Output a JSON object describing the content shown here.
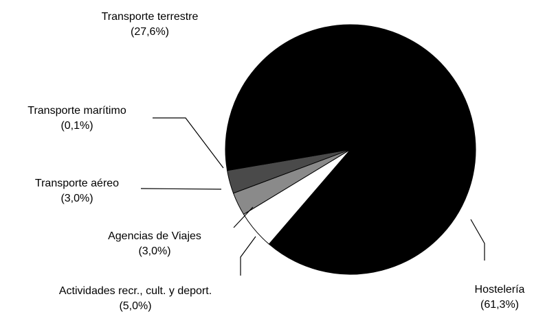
{
  "chart_data": {
    "type": "pie",
    "categories": [
      "Hostelería",
      "Actividades recr., cult. y deport.",
      "Agencias de Viajes",
      "Transporte aéreo",
      "Transporte marítimo",
      "Transporte terrestre"
    ],
    "values": [
      61.3,
      5.0,
      3.0,
      3.0,
      0.1,
      27.6
    ],
    "value_labels": [
      "(61,3%)",
      "(5,0%)",
      "(3,0%)",
      "(3,0%)",
      "(0,1%)",
      "(27,6%)"
    ],
    "colors": [
      "#000000",
      "#ffffff",
      "#8a8a8a",
      "#4a4a4a",
      "#222222",
      "#000000"
    ]
  }
}
